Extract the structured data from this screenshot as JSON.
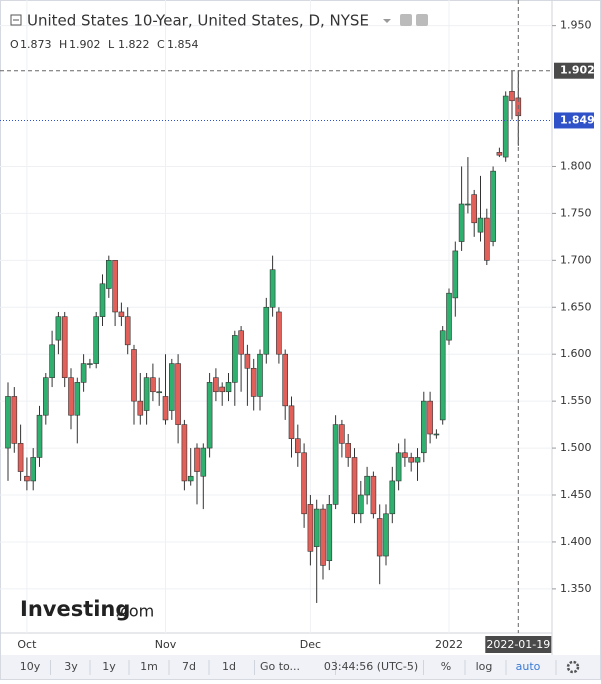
{
  "chart_data": {
    "type": "candlestick",
    "title": "United States 10-Year, United States, D, NYSE",
    "ohlc_header": [
      {
        "label": "O",
        "value": 1.873
      },
      {
        "label": "H",
        "value": 1.902
      },
      {
        "label": "L",
        "value": 1.822
      },
      {
        "label": "C",
        "value": 1.854
      }
    ],
    "categories": [
      null,
      null,
      null,
      "Oct",
      null,
      null,
      null,
      null,
      null,
      null,
      null,
      null,
      null,
      null,
      null,
      null,
      null,
      null,
      null,
      null,
      null,
      null,
      null,
      null,
      null,
      "Nov",
      null,
      null,
      null,
      null,
      null,
      null,
      null,
      null,
      null,
      null,
      null,
      null,
      null,
      null,
      null,
      null,
      null,
      null,
      null,
      null,
      null,
      null,
      "Dec",
      null,
      null,
      null,
      null,
      null,
      null,
      null,
      null,
      null,
      null,
      null,
      null,
      null,
      null,
      null,
      null,
      null,
      null,
      null,
      null,
      null,
      "2022",
      null,
      null,
      null,
      null,
      null,
      null,
      null,
      null,
      null,
      null,
      "2022-01-19"
    ],
    "open": [
      1.5,
      1.555,
      1.505,
      1.47,
      1.465,
      1.49,
      1.535,
      1.575,
      1.615,
      1.64,
      1.575,
      1.535,
      1.57,
      1.59,
      1.59,
      1.64,
      1.67,
      1.7,
      1.645,
      1.64,
      1.605,
      1.55,
      1.54,
      1.575,
      1.56,
      1.555,
      1.54,
      1.59,
      1.525,
      1.465,
      1.5,
      1.47,
      1.5,
      1.575,
      1.565,
      1.56,
      1.57,
      1.625,
      1.6,
      1.585,
      1.555,
      1.6,
      1.65,
      1.645,
      1.6,
      1.545,
      1.51,
      1.495,
      1.44,
      1.395,
      1.435,
      1.38,
      1.44,
      1.525,
      1.505,
      1.49,
      1.43,
      1.45,
      1.47,
      1.425,
      1.385,
      1.43,
      1.465,
      1.495,
      1.49,
      1.485,
      1.495,
      1.55,
      1.515,
      1.53,
      1.615,
      1.66,
      1.72,
      1.76,
      1.77,
      1.73,
      1.745,
      1.72,
      1.815,
      1.81,
      1.88,
      1.873
    ],
    "high": [
      1.57,
      1.565,
      1.525,
      1.49,
      1.5,
      1.545,
      1.58,
      1.625,
      1.645,
      1.645,
      1.585,
      1.575,
      1.6,
      1.595,
      1.645,
      1.685,
      1.705,
      1.7,
      1.655,
      1.65,
      1.61,
      1.58,
      1.58,
      1.59,
      1.575,
      1.6,
      1.595,
      1.6,
      1.53,
      1.5,
      1.505,
      1.505,
      1.58,
      1.585,
      1.57,
      1.58,
      1.625,
      1.63,
      1.61,
      1.595,
      1.605,
      1.66,
      1.705,
      1.65,
      1.605,
      1.555,
      1.525,
      1.505,
      1.45,
      1.445,
      1.44,
      1.45,
      1.535,
      1.53,
      1.515,
      1.5,
      1.465,
      1.48,
      1.475,
      1.44,
      1.44,
      1.48,
      1.505,
      1.51,
      1.495,
      1.5,
      1.56,
      1.56,
      1.52,
      1.63,
      1.67,
      1.72,
      1.8,
      1.81,
      1.775,
      1.79,
      1.755,
      1.8,
      1.82,
      1.88,
      1.902,
      1.902
    ],
    "low": [
      1.465,
      1.495,
      1.465,
      1.455,
      1.455,
      1.48,
      1.525,
      1.565,
      1.6,
      1.565,
      1.52,
      1.505,
      1.56,
      1.585,
      1.585,
      1.63,
      1.66,
      1.63,
      1.63,
      1.6,
      1.525,
      1.525,
      1.525,
      1.55,
      1.545,
      1.525,
      1.53,
      1.505,
      1.455,
      1.46,
      1.44,
      1.435,
      1.49,
      1.55,
      1.545,
      1.55,
      1.545,
      1.56,
      1.545,
      1.54,
      1.54,
      1.59,
      1.64,
      1.59,
      1.53,
      1.49,
      1.48,
      1.415,
      1.375,
      1.335,
      1.36,
      1.37,
      1.435,
      1.49,
      1.48,
      1.42,
      1.42,
      1.44,
      1.425,
      1.355,
      1.375,
      1.42,
      1.455,
      1.48,
      1.475,
      1.465,
      1.485,
      1.505,
      1.51,
      1.525,
      1.61,
      1.64,
      1.71,
      1.75,
      1.725,
      1.72,
      1.695,
      1.715,
      1.81,
      1.805,
      1.85,
      1.822
    ],
    "close": [
      1.555,
      1.505,
      1.475,
      1.465,
      1.49,
      1.535,
      1.575,
      1.61,
      1.64,
      1.575,
      1.535,
      1.57,
      1.59,
      1.59,
      1.64,
      1.675,
      1.7,
      1.645,
      1.64,
      1.61,
      1.55,
      1.535,
      1.575,
      1.56,
      1.56,
      1.53,
      1.59,
      1.525,
      1.465,
      1.47,
      1.475,
      1.5,
      1.57,
      1.56,
      1.56,
      1.57,
      1.62,
      1.6,
      1.585,
      1.555,
      1.6,
      1.65,
      1.69,
      1.6,
      1.545,
      1.51,
      1.495,
      1.43,
      1.39,
      1.435,
      1.375,
      1.44,
      1.525,
      1.505,
      1.49,
      1.43,
      1.45,
      1.47,
      1.43,
      1.385,
      1.43,
      1.465,
      1.495,
      1.49,
      1.485,
      1.49,
      1.55,
      1.515,
      1.515,
      1.625,
      1.665,
      1.71,
      1.76,
      1.76,
      1.74,
      1.745,
      1.7,
      1.795,
      1.812,
      1.875,
      1.87,
      1.854
    ],
    "up_color": "#2fb06e",
    "down_color": "#e2605a",
    "ylim": [
      1.303,
      1.972
    ],
    "yticks": [
      {
        "value": 1.35,
        "label": "1.350"
      },
      {
        "value": 1.4,
        "label": "1.400"
      },
      {
        "value": 1.45,
        "label": "1.450"
      },
      {
        "value": 1.5,
        "label": "1.500"
      },
      {
        "value": 1.55,
        "label": "1.550"
      },
      {
        "value": 1.6,
        "label": "1.600"
      },
      {
        "value": 1.65,
        "label": "1.650"
      },
      {
        "value": 1.7,
        "label": "1.700"
      },
      {
        "value": 1.75,
        "label": "1.750"
      },
      {
        "value": 1.8,
        "label": "1.800"
      },
      {
        "value": 1.95,
        "label": "1.950"
      }
    ],
    "grid": true,
    "crosshair_price": 1.902,
    "last_price": 1.849,
    "last_price_color": "#2f52c9",
    "logo_main": "Investing",
    "logo_suffix": ".com"
  },
  "toolbar": [
    "10y",
    "3y",
    "1y",
    "1m",
    "7d",
    "1d",
    "Go to...",
    "03:44:56 (UTC-5)",
    "%",
    "log",
    "auto"
  ]
}
